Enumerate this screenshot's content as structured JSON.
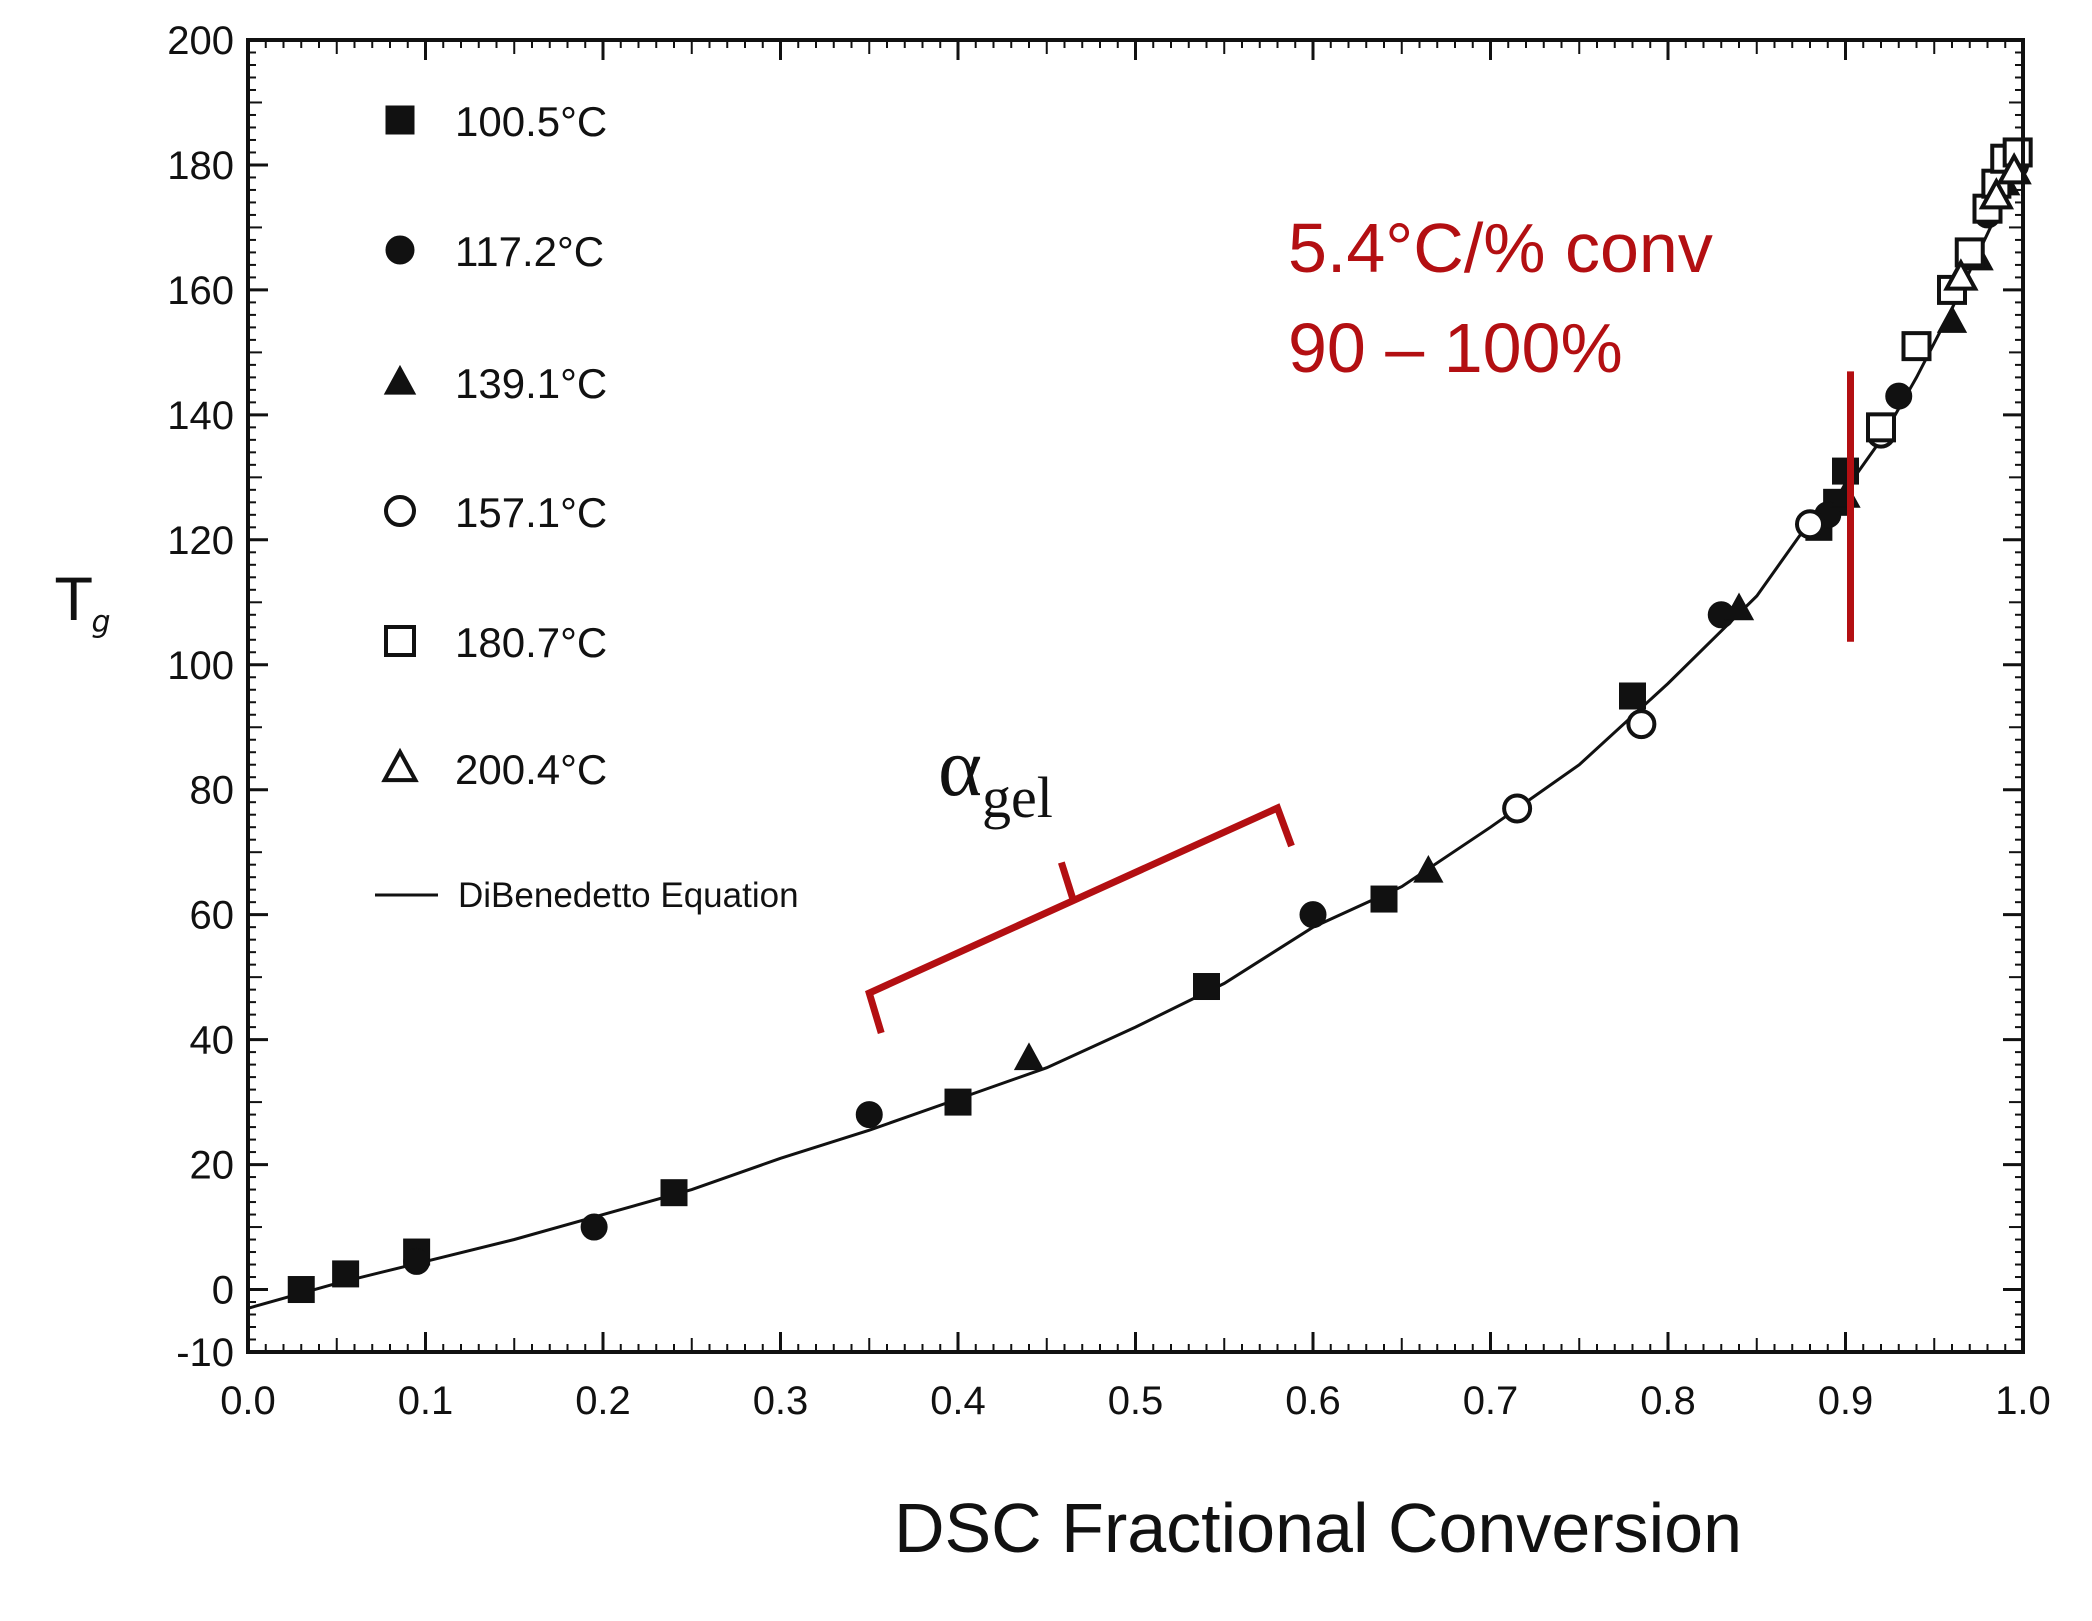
{
  "chart_data": {
    "type": "scatter",
    "title": "",
    "xlabel": "DSC Fractional Conversion",
    "ylabel": "T",
    "ylabel_subscript": "g",
    "xlim": [
      0.0,
      1.0
    ],
    "ylim": [
      -10,
      200
    ],
    "x_ticks": [
      "0.0",
      "0.1",
      "0.2",
      "0.3",
      "0.4",
      "0.5",
      "0.6",
      "0.7",
      "0.8",
      "0.9",
      "1.0"
    ],
    "y_ticks": [
      "-10",
      "0",
      "20",
      "40",
      "60",
      "80",
      "100",
      "120",
      "140",
      "160",
      "180",
      "200"
    ],
    "legend_position": "top-left",
    "series": [
      {
        "name": "100.5°C",
        "marker": "filled-square",
        "points": [
          [
            0.03,
            0
          ],
          [
            0.055,
            2.5
          ],
          [
            0.095,
            6
          ],
          [
            0.24,
            15.5
          ],
          [
            0.4,
            30
          ],
          [
            0.54,
            48.5
          ],
          [
            0.64,
            62.5
          ],
          [
            0.78,
            95
          ],
          [
            0.885,
            122
          ],
          [
            0.895,
            126
          ],
          [
            0.9,
            131
          ]
        ]
      },
      {
        "name": "117.2°C",
        "marker": "filled-circle",
        "points": [
          [
            0.095,
            4.5
          ],
          [
            0.195,
            10
          ],
          [
            0.35,
            28
          ],
          [
            0.6,
            60
          ],
          [
            0.83,
            108
          ],
          [
            0.89,
            124
          ],
          [
            0.93,
            143
          ],
          [
            0.98,
            172
          ]
        ]
      },
      {
        "name": "139.1°C",
        "marker": "filled-triangle",
        "points": [
          [
            0.44,
            37
          ],
          [
            0.665,
            67
          ],
          [
            0.84,
            109
          ],
          [
            0.9,
            127
          ],
          [
            0.96,
            155
          ],
          [
            0.975,
            165
          ],
          [
            0.99,
            177
          ]
        ]
      },
      {
        "name": "157.1°C",
        "marker": "open-circle",
        "points": [
          [
            0.715,
            77
          ],
          [
            0.785,
            90.5
          ],
          [
            0.88,
            122.5
          ],
          [
            0.92,
            137
          ],
          [
            0.995,
            180
          ]
        ]
      },
      {
        "name": "180.7°C",
        "marker": "open-square",
        "points": [
          [
            0.92,
            138
          ],
          [
            0.94,
            151
          ],
          [
            0.96,
            160
          ],
          [
            0.97,
            166
          ],
          [
            0.98,
            173
          ],
          [
            0.985,
            177
          ],
          [
            0.99,
            181
          ],
          [
            0.997,
            182
          ]
        ]
      },
      {
        "name": "200.4°C",
        "marker": "open-triangle",
        "points": [
          [
            0.965,
            162
          ],
          [
            0.985,
            175
          ],
          [
            0.995,
            179
          ]
        ]
      }
    ],
    "fit_line": {
      "name": "DiBenedetto Equation",
      "points": [
        [
          0.0,
          -3
        ],
        [
          0.05,
          1
        ],
        [
          0.1,
          4.5
        ],
        [
          0.15,
          8
        ],
        [
          0.2,
          12
        ],
        [
          0.25,
          16
        ],
        [
          0.3,
          21
        ],
        [
          0.35,
          25.5
        ],
        [
          0.4,
          30.5
        ],
        [
          0.45,
          35.5
        ],
        [
          0.5,
          42
        ],
        [
          0.55,
          49
        ],
        [
          0.6,
          58
        ],
        [
          0.65,
          64.5
        ],
        [
          0.7,
          74
        ],
        [
          0.75,
          84
        ],
        [
          0.8,
          97
        ],
        [
          0.85,
          111
        ],
        [
          0.88,
          123
        ],
        [
          0.9,
          128
        ],
        [
          0.92,
          136
        ],
        [
          0.94,
          146
        ],
        [
          0.96,
          157
        ],
        [
          0.98,
          169
        ],
        [
          1.0,
          181
        ]
      ]
    },
    "annotations": {
      "alpha_symbol": "α",
      "alpha_subscript": "gel",
      "gel_bracket_x_range": [
        0.35,
        0.58
      ],
      "slope_line_1": "5.4°C/% conv",
      "slope_line_2": "90 – 100%",
      "vertical_marker_x": 0.9,
      "vertical_marker_y_range": [
        104,
        146
      ],
      "annotation_color": "#b30f12"
    }
  }
}
